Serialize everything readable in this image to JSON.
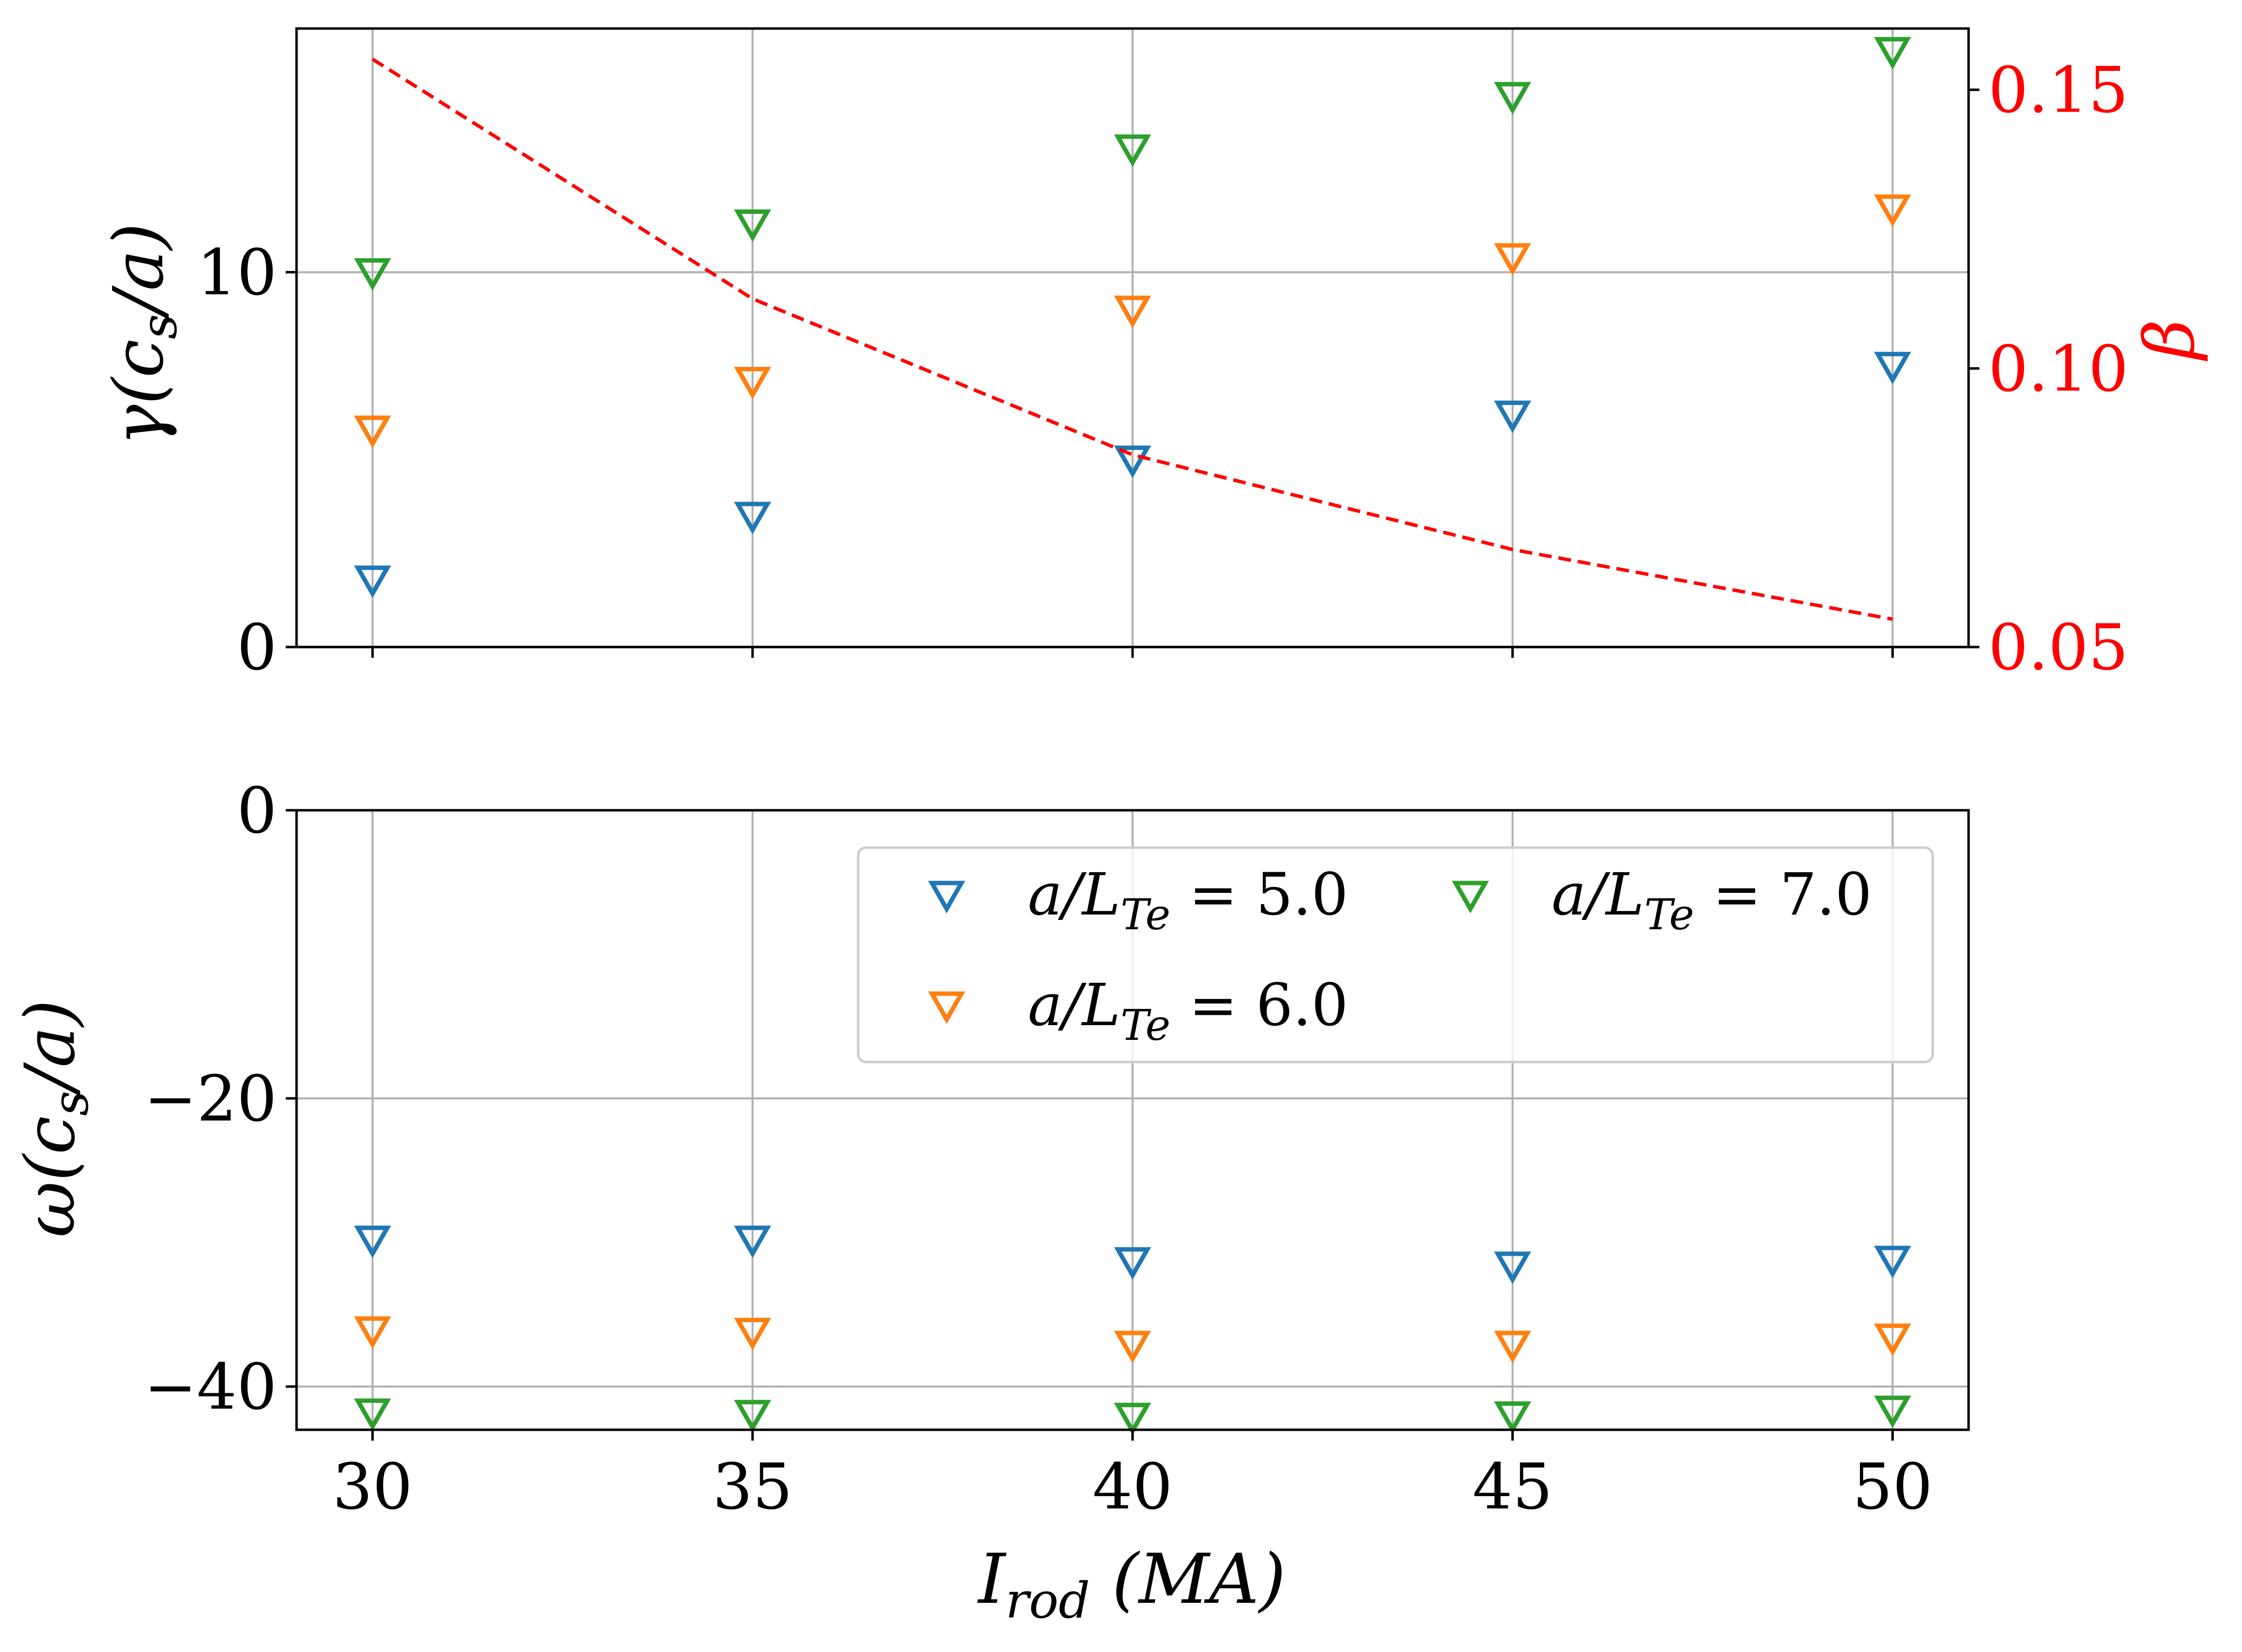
{
  "chart_data": [
    {
      "type": "scatter",
      "panel": "top",
      "x": [
        30,
        35,
        40,
        45,
        50
      ],
      "xlim": [
        29,
        51
      ],
      "xticks": [
        "30",
        "35",
        "40",
        "45",
        "50"
      ],
      "ylabel": "γ(c_s/a)",
      "ylim": [
        0,
        16.5
      ],
      "yticks": [
        "0",
        "10"
      ],
      "grid": true,
      "series": [
        {
          "name": "a/L_Te = 5.0",
          "color": "#1f77b4",
          "marker": "triangle-down-open",
          "values": [
            1.8,
            3.5,
            5.0,
            6.2,
            7.5
          ]
        },
        {
          "name": "a/L_Te = 6.0",
          "color": "#ff7f0e",
          "marker": "triangle-down-open",
          "values": [
            5.8,
            7.1,
            9.0,
            10.4,
            11.7
          ]
        },
        {
          "name": "a/L_Te = 7.0",
          "color": "#2ca02c",
          "marker": "triangle-down-open",
          "values": [
            10.0,
            11.3,
            13.3,
            14.7,
            15.9
          ]
        }
      ],
      "secondary_axis": {
        "ylabel": "β",
        "color": "#ff0000",
        "ylim": [
          0.05,
          0.161
        ],
        "yticks": [
          "0.05",
          "0.10",
          "0.15"
        ],
        "series": [
          {
            "name": "β",
            "style": "dashed",
            "color": "#ff0000",
            "values": [
              0.1555,
              0.1125,
              0.0845,
              0.0675,
              0.055
            ]
          }
        ]
      }
    },
    {
      "type": "scatter",
      "panel": "bottom",
      "x": [
        30,
        35,
        40,
        45,
        50
      ],
      "xlim": [
        29,
        51
      ],
      "xticks": [
        "30",
        "35",
        "40",
        "45",
        "50"
      ],
      "xlabel": "I_rod (MA)",
      "ylabel": "ω(c_s/a)",
      "ylim": [
        -43,
        0
      ],
      "yticks": [
        "0",
        "−20",
        "−40"
      ],
      "grid": true,
      "series": [
        {
          "name": "a/L_Te = 5.0",
          "color": "#1f77b4",
          "marker": "triangle-down-open",
          "values": [
            -29.8,
            -29.8,
            -31.3,
            -31.6,
            -31.2
          ]
        },
        {
          "name": "a/L_Te = 6.0",
          "color": "#ff7f0e",
          "marker": "triangle-down-open",
          "values": [
            -36.1,
            -36.2,
            -37.1,
            -37.1,
            -36.6
          ]
        },
        {
          "name": "a/L_Te = 7.0",
          "color": "#2ca02c",
          "marker": "triangle-down-open",
          "values": [
            -41.8,
            -41.9,
            -42.1,
            -42.0,
            -41.6
          ]
        }
      ],
      "legend": {
        "location": "upper-right",
        "columns": 2,
        "entries": [
          {
            "prefix": "a/L",
            "subscript": "Te",
            "suffix": " = 5.0",
            "color": "#1f77b4"
          },
          {
            "prefix": "a/L",
            "subscript": "Te",
            "suffix": " = 7.0",
            "color": "#2ca02c"
          },
          {
            "prefix": "a/L",
            "subscript": "Te",
            "suffix": " = 6.0",
            "color": "#ff7f0e"
          }
        ]
      }
    }
  ]
}
